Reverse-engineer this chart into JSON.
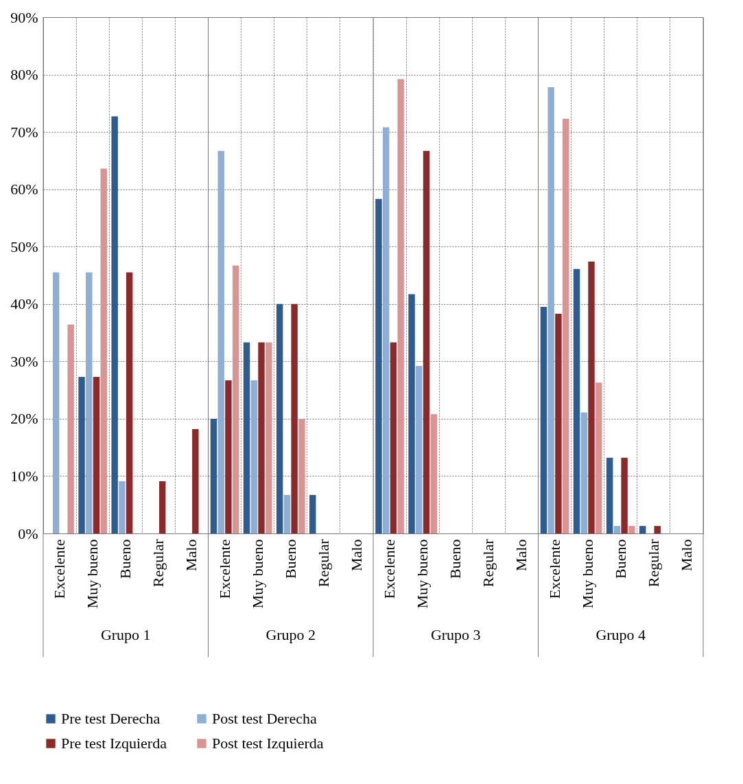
{
  "chart_data": {
    "type": "bar",
    "categories": [
      "Excelente",
      "Muy bueno",
      "Bueno",
      "Regular",
      "Malo",
      "Excelente",
      "Muy bueno",
      "Bueno",
      "Regular",
      "Malo",
      "Excelente",
      "Muy bueno",
      "Bueno",
      "Regular",
      "Malo",
      "Excelente",
      "Muy bueno",
      "Bueno",
      "Regular",
      "Malo"
    ],
    "annotations": [
      "Grupo 1",
      "Grupo 2",
      "Grupo 3",
      "Grupo 4"
    ],
    "series": [
      {
        "name": "Pre test Derecha",
        "color": "#2e5c8f",
        "values": [
          0,
          27.3,
          72.7,
          0,
          0,
          20,
          33.3,
          40,
          6.7,
          0,
          58.3,
          41.7,
          0,
          0,
          0,
          39.5,
          46.1,
          13.2,
          1.3,
          0
        ]
      },
      {
        "name": "Post test Derecha",
        "color": "#8eaed4",
        "values": [
          45.5,
          45.5,
          9.1,
          0,
          0,
          66.7,
          26.7,
          6.7,
          0,
          0,
          70.8,
          29.2,
          0,
          0,
          0,
          77.8,
          21.1,
          1.3,
          0,
          0
        ]
      },
      {
        "name": "Pre test Izquierda",
        "color": "#8b2a2a",
        "values": [
          0,
          27.3,
          45.5,
          9.1,
          18.2,
          26.7,
          33.3,
          40,
          0,
          0,
          33.3,
          66.7,
          0,
          0,
          0,
          38.3,
          47.4,
          13.2,
          1.3,
          0
        ]
      },
      {
        "name": "Post test  Izquierda",
        "color": "#d99594",
        "values": [
          36.4,
          63.6,
          0,
          0,
          0,
          46.7,
          33.3,
          20,
          0,
          0,
          79.2,
          20.8,
          0,
          0,
          0,
          72.3,
          26.3,
          1.3,
          0,
          0
        ]
      }
    ],
    "ylim": [
      0,
      90
    ],
    "yticks": [
      {
        "value": 0,
        "label": "0%"
      },
      {
        "value": 10,
        "label": "10%"
      },
      {
        "value": 20,
        "label": "20%"
      },
      {
        "value": 30,
        "label": "30%"
      },
      {
        "value": 40,
        "label": "40%"
      },
      {
        "value": 50,
        "label": "50%"
      },
      {
        "value": 60,
        "label": "60%"
      },
      {
        "value": 70,
        "label": "70%"
      },
      {
        "value": 80,
        "label": "80%"
      },
      {
        "value": 90,
        "label": "90%"
      }
    ],
    "grid": true,
    "legend": "bottom"
  }
}
